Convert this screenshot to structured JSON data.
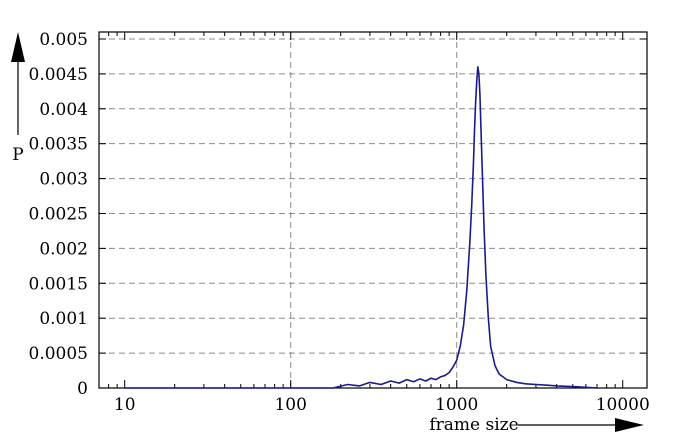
{
  "chart_data": {
    "type": "line",
    "title": "",
    "xlabel": "frame size",
    "ylabel": "P",
    "x_scale": "log",
    "xlim": [
      7,
      14000
    ],
    "ylim": [
      0,
      0.0051
    ],
    "x_ticks": [
      {
        "value": 10,
        "label": "10"
      },
      {
        "value": 100,
        "label": "100"
      },
      {
        "value": 1000,
        "label": "1000"
      },
      {
        "value": 10000,
        "label": "10000"
      }
    ],
    "y_ticks": [
      {
        "value": 0,
        "label": "0"
      },
      {
        "value": 0.0005,
        "label": "0.0005"
      },
      {
        "value": 0.001,
        "label": "0.001"
      },
      {
        "value": 0.0015,
        "label": "0.0015"
      },
      {
        "value": 0.002,
        "label": "0.002"
      },
      {
        "value": 0.0025,
        "label": "0.0025"
      },
      {
        "value": 0.003,
        "label": "0.003"
      },
      {
        "value": 0.0035,
        "label": "0.0035"
      },
      {
        "value": 0.004,
        "label": "0.004"
      },
      {
        "value": 0.0045,
        "label": "0.0045"
      },
      {
        "value": 0.005,
        "label": "0.005"
      }
    ],
    "grid": true,
    "series_color": "#1a1a8c",
    "series": [
      {
        "x": [
          10,
          100,
          180,
          220,
          260,
          300,
          350,
          400,
          450,
          500,
          550,
          600,
          650,
          700,
          750,
          800,
          850,
          900,
          950,
          1000,
          1050,
          1100,
          1150,
          1200,
          1230,
          1260,
          1280,
          1300,
          1320,
          1340,
          1360,
          1380,
          1400,
          1430,
          1460,
          1500,
          1550,
          1600,
          1700,
          1800,
          2000,
          2300,
          2600,
          3000,
          3500,
          4000,
          5000,
          6000,
          7000
        ],
        "y": [
          0,
          0,
          0,
          5e-05,
          3e-05,
          8e-05,
          5e-05,
          0.0001,
          7e-05,
          0.00012,
          9e-05,
          0.00013,
          0.0001,
          0.00014,
          0.00012,
          0.00016,
          0.00018,
          0.00022,
          0.0003,
          0.0004,
          0.0006,
          0.0009,
          0.0014,
          0.0021,
          0.0026,
          0.0032,
          0.0037,
          0.0041,
          0.0044,
          0.0046,
          0.0045,
          0.0042,
          0.0037,
          0.003,
          0.0023,
          0.0016,
          0.001,
          0.0006,
          0.00032,
          0.0002,
          0.00012,
          8e-05,
          6e-05,
          5e-05,
          4e-05,
          3e-05,
          2e-05,
          1e-05,
          0
        ]
      }
    ]
  }
}
